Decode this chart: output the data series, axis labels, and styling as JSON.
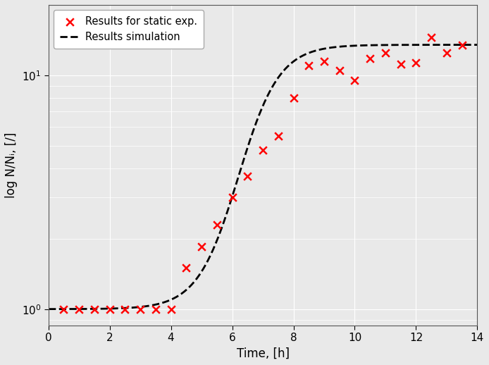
{
  "title": "",
  "xlabel": "Time, [h]",
  "ylabel": "log N/Nᵢ, [/]",
  "xlim": [
    0,
    14
  ],
  "exp_x": [
    0.5,
    1.0,
    1.5,
    2.0,
    2.5,
    3.0,
    3.5,
    4.0,
    4.5,
    5.0,
    5.5,
    6.0,
    6.5,
    7.0,
    7.5,
    8.0,
    8.5,
    9.0,
    9.5,
    10.0,
    10.5,
    11.0,
    11.5,
    12.0,
    12.5,
    13.0,
    13.5
  ],
  "exp_y": [
    1.0,
    1.0,
    1.0,
    1.0,
    1.0,
    1.0,
    1.0,
    1.0,
    1.5,
    1.85,
    2.3,
    3.0,
    3.7,
    4.8,
    5.5,
    8.0,
    11.0,
    11.5,
    10.5,
    9.5,
    11.8,
    12.5,
    11.2,
    11.3,
    14.5,
    12.5,
    13.5
  ],
  "marker_color": "#ff0000",
  "marker": "x",
  "marker_size": 7,
  "line_color": "#000000",
  "line_style": "--",
  "line_width": 2.0,
  "legend_labels": [
    "Results for static exp.",
    "Results simulation"
  ],
  "background_color": "#e9e9e9",
  "grid_color": "#ffffff",
  "xticks": [
    0,
    2,
    4,
    6,
    8,
    10,
    12,
    14
  ],
  "xlabel_fontsize": 12,
  "ylabel_fontsize": 12,
  "tick_fontsize": 11,
  "ylim": [
    0.85,
    20
  ]
}
